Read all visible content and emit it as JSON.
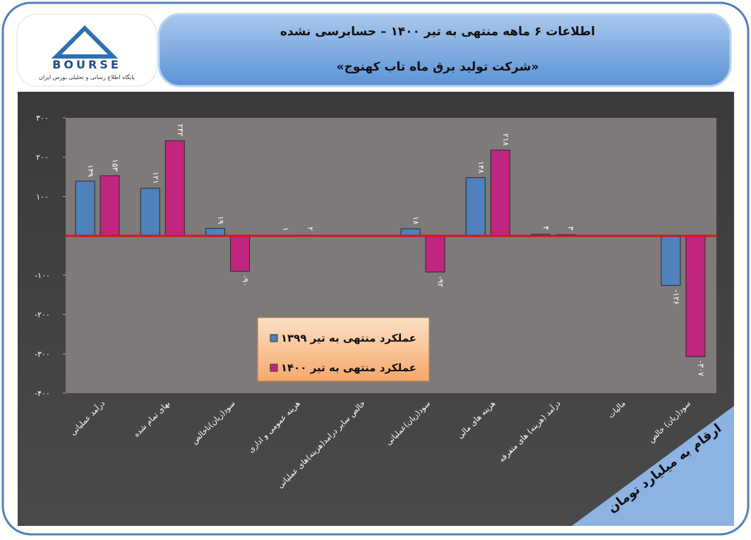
{
  "header": {
    "title": "اطلاعات ۶ ماهه منتهی به تیر ۱۴۰۰ – حسابرسی نشده",
    "subtitle": "«شرکت تولید برق ماه تاب کهنوج»"
  },
  "logo": {
    "name": "BOURSE",
    "caption": "پایگاه اطلاع رسانی و تحلیلی بورس ایران"
  },
  "chart_data": {
    "type": "bar",
    "note": "ارقام به میلیارد تومان",
    "categories": [
      "درآمد عملیاتی",
      "بهای تمام شده",
      "سود(زیان)ناخالص",
      "هزینه عمومی و اداری",
      "خالص سایر درامد(هزینه)های عملیاتی",
      "سود(زیان)عملیاتی",
      "هزینه های مالی",
      "درآمد (هزینه) های متفرقه",
      "مالیات",
      "سود(زیان) خالص"
    ],
    "series": [
      {
        "name": "عملکرد منتهی به تیر ۱۳۹۹",
        "color": "#4f81bd",
        "values": [
          139,
          121,
          19,
          1,
          null,
          18,
          148,
          4,
          null,
          -126
        ],
        "value_labels": [
          "۱۳۹",
          "۱۲۱",
          "۱۹",
          "۱",
          null,
          "۱۸",
          "۱۴۸",
          "۴",
          null,
          "-۱۲۶"
        ]
      },
      {
        "name": "عملکرد منتهی به تیر ۱۴۰۰",
        "color": "#c0267f",
        "values": [
          153,
          242,
          -90,
          2,
          null,
          -92,
          218,
          3,
          null,
          -307
        ],
        "value_labels": [
          "۱۵۳",
          "۲۴۲",
          "-۹۰",
          "۲",
          null,
          "-۹۲",
          "۲۱۸",
          "۳",
          null,
          "-۳۰۷"
        ]
      }
    ],
    "ylim": [
      -400,
      300
    ],
    "yticks": [
      {
        "value": 300,
        "label": "۳۰۰"
      },
      {
        "value": 200,
        "label": "۲۰۰"
      },
      {
        "value": 100,
        "label": "۱۰۰"
      },
      {
        "value": -100,
        "label": "-۱۰۰"
      },
      {
        "value": -200,
        "label": "-۲۰۰"
      },
      {
        "value": -300,
        "label": "-۳۰۰"
      },
      {
        "value": -400,
        "label": "-۴۰۰"
      }
    ],
    "zero_line_color": "#e0101a"
  }
}
